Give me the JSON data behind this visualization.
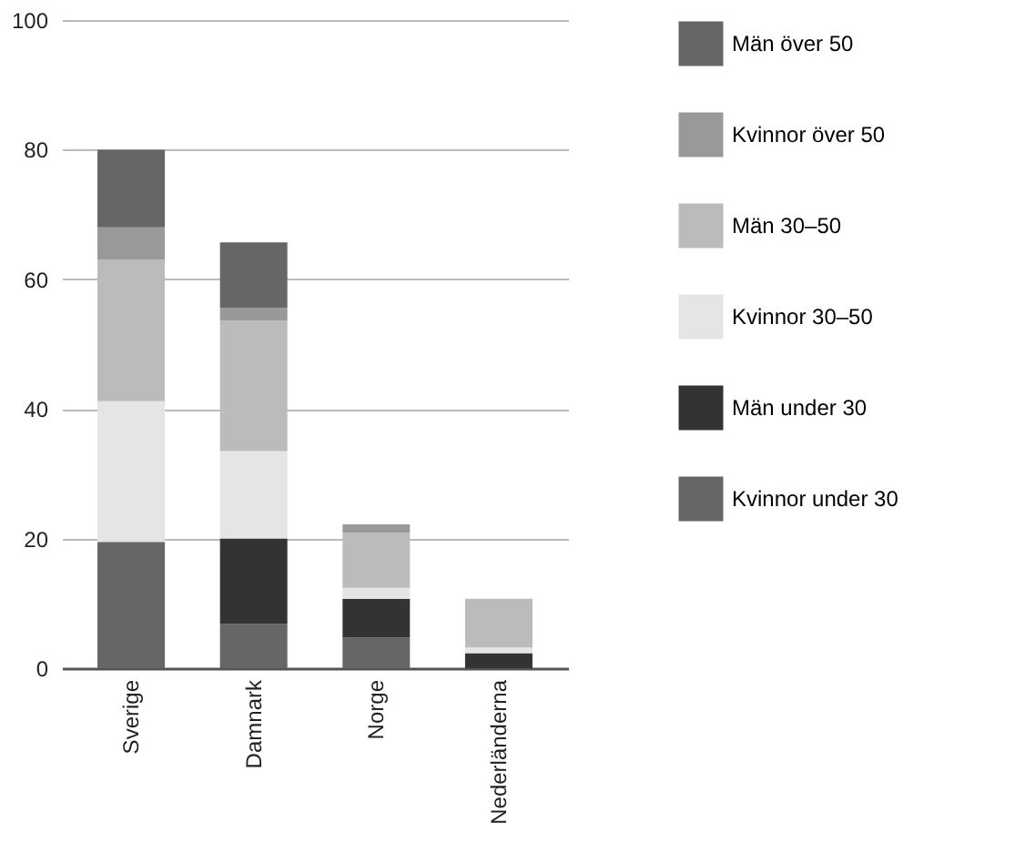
{
  "chart_data": {
    "type": "bar",
    "stacked": true,
    "categories": [
      "Sverige",
      "Damnark",
      "Norge",
      "Nederländerna"
    ],
    "series": [
      {
        "name": "Kvinnor under 30",
        "color": "#666666",
        "values": [
          19.5,
          6.8,
          4.7,
          0
        ]
      },
      {
        "name": "Män under 30",
        "color": "#333333",
        "values": [
          0,
          13.2,
          6.0,
          2.3
        ]
      },
      {
        "name": "Kvinnor 30–50",
        "color": "#e5e5e5",
        "values": [
          21.7,
          13.5,
          1.7,
          0.9
        ]
      },
      {
        "name": "Män 30–50",
        "color": "#bbbbbb",
        "values": [
          21.8,
          20.1,
          8.5,
          7.5
        ]
      },
      {
        "name": "Kvinnor över 50",
        "color": "#999999",
        "values": [
          5,
          2,
          1.3,
          0
        ]
      },
      {
        "name": "Män över 50",
        "color": "#666666",
        "values": [
          12,
          10.1,
          0,
          0
        ]
      }
    ],
    "ylim": [
      0,
      100
    ],
    "yticks": [
      0,
      20,
      40,
      60,
      80,
      100
    ],
    "grid": "y",
    "legend": "right"
  }
}
